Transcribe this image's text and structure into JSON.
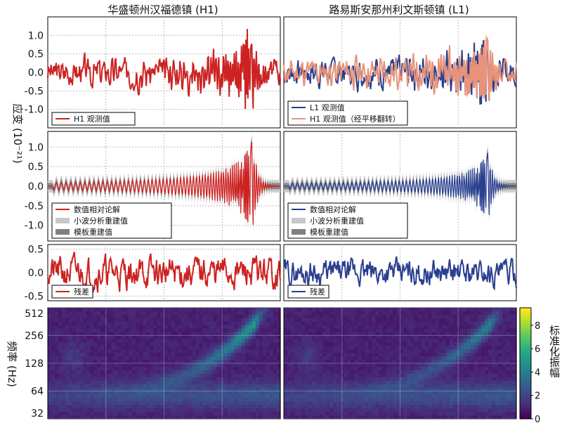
{
  "figure": {
    "col_titles": [
      "华盛顿州汉福德镇 (H1)",
      "路易斯安那州利文斯顿镇 (L1)"
    ],
    "strain_label": "应变 (10⁻²¹)",
    "freq_label": "频率 (Hz)",
    "colorbar_label": "标准化振幅",
    "colors": {
      "h1": "#cc2222",
      "l1": "#2a3f8f",
      "h1_shifted": "#e8937a",
      "wavelet_band": "#c8c8c8",
      "template_band": "#808080"
    }
  },
  "chart_data": [
    {
      "type": "line",
      "panel": "observed-h1",
      "title": "华盛顿州汉福德镇 (H1)",
      "ylabel": "应变 (10⁻²¹)",
      "ylim": [
        -1.5,
        1.5
      ],
      "yticks": [
        -1.0,
        -0.5,
        0.0,
        0.5,
        1.0
      ],
      "series": [
        {
          "name": "H1 观测值",
          "color": "#cc2222",
          "kind": "noisy_chirp",
          "seed": 3,
          "peak_amp": 1.1
        }
      ],
      "legend": [
        "H1 观测值"
      ],
      "legend_position": "bottom-left",
      "grid": true
    },
    {
      "type": "line",
      "panel": "observed-l1",
      "title": "路易斯安那州利文斯顿镇 (L1)",
      "ylim": [
        -1.5,
        1.5
      ],
      "series": [
        {
          "name": "L1 观测值",
          "color": "#2a3f8f",
          "kind": "noisy_chirp",
          "seed": 7,
          "peak_amp": 0.9
        },
        {
          "name": "H1 观测值（经平移翻转）",
          "color": "#e8937a",
          "kind": "noisy_chirp",
          "seed": 11,
          "peak_amp": 1.0
        }
      ],
      "legend": [
        "L1 观测值",
        "H1 观测值（经平移翻转）"
      ],
      "legend_position": "bottom-left",
      "grid": true
    },
    {
      "type": "line",
      "panel": "reconstructed-h1",
      "ylim": [
        -1.4,
        1.4
      ],
      "yticks": [
        -1.0,
        -0.5,
        0.0,
        0.5,
        1.0
      ],
      "series": [
        {
          "name": "数值相对论解",
          "color": "#cc2222",
          "kind": "chirp",
          "peak_amp": 1.2
        },
        {
          "name": "小波分析重建值",
          "color": "#c8c8c8",
          "kind": "band"
        },
        {
          "name": "模板重建值",
          "color": "#808080",
          "kind": "band"
        }
      ],
      "legend": [
        "数值相对论解",
        "小波分析重建值",
        "模板重建值"
      ],
      "legend_position": "bottom-left",
      "grid": true
    },
    {
      "type": "line",
      "panel": "reconstructed-l1",
      "ylim": [
        -1.4,
        1.4
      ],
      "series": [
        {
          "name": "数值相对论解",
          "color": "#2a3f8f",
          "kind": "chirp",
          "peak_amp": 0.9
        },
        {
          "name": "小波分析重建值",
          "color": "#c8c8c8",
          "kind": "band"
        },
        {
          "name": "模板重建值",
          "color": "#808080",
          "kind": "band"
        }
      ],
      "legend": [
        "数值相对论解",
        "小波分析重建值",
        "模板重建值"
      ],
      "legend_position": "bottom-left",
      "grid": true
    },
    {
      "type": "line",
      "panel": "residual-h1",
      "ylim": [
        -0.6,
        0.6
      ],
      "yticks": [
        -0.5,
        0.0,
        0.5
      ],
      "series": [
        {
          "name": "残差",
          "color": "#cc2222",
          "kind": "noise",
          "seed": 21,
          "amp": 0.25
        }
      ],
      "legend": [
        "残差"
      ],
      "legend_position": "bottom-left",
      "grid": true
    },
    {
      "type": "line",
      "panel": "residual-l1",
      "ylim": [
        -0.6,
        0.6
      ],
      "series": [
        {
          "name": "残差",
          "color": "#2a3f8f",
          "kind": "noise",
          "seed": 29,
          "amp": 0.2
        }
      ],
      "legend": [
        "残差"
      ],
      "legend_position": "bottom-left",
      "grid": true
    },
    {
      "type": "heatmap",
      "panel": "spectrogram-h1",
      "ylabel": "频率 (Hz)",
      "yscale": "log2",
      "ylim": [
        32,
        512
      ],
      "yticks": [
        32,
        64,
        128,
        256,
        512
      ],
      "peak": 9.0
    },
    {
      "type": "heatmap",
      "panel": "spectrogram-l1",
      "ylim": [
        32,
        512
      ],
      "peak": 7.0
    },
    {
      "type": "colorbar",
      "panel": "colorbar",
      "label": "标准化振幅",
      "range": [
        0,
        9.5
      ],
      "ticks": [
        0,
        2,
        4,
        6,
        8
      ],
      "colormap": "viridis"
    }
  ]
}
